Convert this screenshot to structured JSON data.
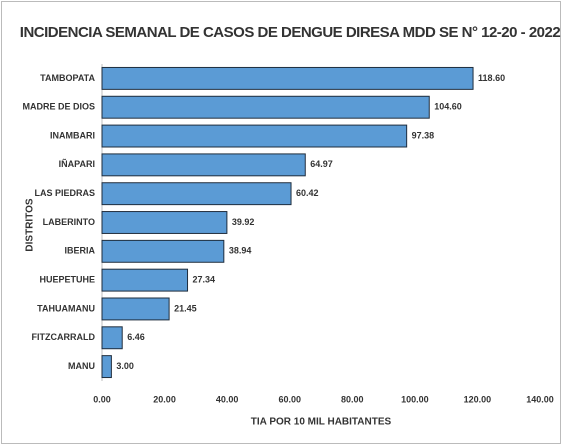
{
  "chart_data": {
    "type": "bar",
    "orientation": "horizontal",
    "title": "INCIDENCIA SEMANAL DE CASOS DE DENGUE DIRESA MDD SE N° 12-20 - 2022",
    "x_label": "TIA POR 10 MIL HABITANTES",
    "y_label": "DISTRITOS",
    "categories": [
      "TAMBOPATA",
      "MADRE DE DIOS",
      "INAMBARI",
      "IÑAPARI",
      "LAS PIEDRAS",
      "LABERINTO",
      "IBERIA",
      "HUEPETUHE",
      "TAHUAMANU",
      "FITZCARRALD",
      "MANU"
    ],
    "values": [
      118.6,
      104.6,
      97.38,
      64.97,
      60.42,
      39.92,
      38.94,
      27.34,
      21.45,
      6.46,
      3.0
    ],
    "value_labels": [
      "118.60",
      "104.60",
      "97.38",
      "64.97",
      "60.42",
      "39.92",
      "38.94",
      "27.34",
      "21.45",
      "6.46",
      "3.00"
    ],
    "color": "#5b9bd5",
    "xlim": [
      0,
      140
    ],
    "xticks": [
      {
        "value": 0,
        "label": "0.00"
      },
      {
        "value": 20,
        "label": "20.00"
      },
      {
        "value": 40,
        "label": "40.00"
      },
      {
        "value": 60,
        "label": "60.00"
      },
      {
        "value": 80,
        "label": "80.00"
      },
      {
        "value": 100,
        "label": "100.00"
      },
      {
        "value": 120,
        "label": "120.00"
      },
      {
        "value": 140,
        "label": "140.00"
      }
    ],
    "grid": false
  }
}
